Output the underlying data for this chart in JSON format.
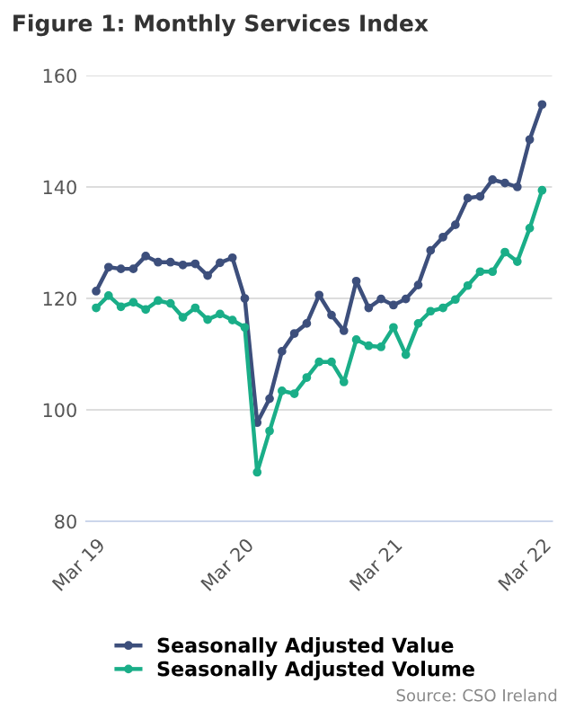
{
  "chart_data": {
    "type": "line",
    "title": "Figure 1: Monthly Services Index",
    "categories": [
      "Mar 19",
      null,
      null,
      null,
      null,
      null,
      null,
      null,
      null,
      null,
      null,
      null,
      "Mar 20",
      null,
      null,
      null,
      null,
      null,
      null,
      null,
      null,
      null,
      null,
      null,
      "Mar 21",
      null,
      null,
      null,
      null,
      null,
      null,
      null,
      null,
      null,
      null,
      null,
      "Mar 22"
    ],
    "series": [
      {
        "name": "Seasonally Adjusted Value",
        "color": "#3d4f7c",
        "values": [
          121.3,
          125.6,
          125.3,
          125.3,
          127.6,
          126.5,
          126.5,
          126,
          126.2,
          124.1,
          126.4,
          127.3,
          120,
          97.7,
          102,
          110.5,
          113.7,
          115.5,
          120.6,
          117,
          114.2,
          123.1,
          118.3,
          119.9,
          118.8,
          119.9,
          122.4,
          128.6,
          131,
          133.2,
          138,
          138.3,
          141.3,
          140.7,
          140,
          148.5,
          154.8
        ]
      },
      {
        "name": "Seasonally Adjusted Volume",
        "color": "#1aae88",
        "values": [
          118.3,
          120.5,
          118.5,
          119.3,
          118,
          119.6,
          119.1,
          116.6,
          118.3,
          116.2,
          117.2,
          116.1,
          114.8,
          88.8,
          96.2,
          103.4,
          102.9,
          105.8,
          108.6,
          108.6,
          105,
          112.6,
          111.5,
          111.3,
          114.8,
          109.9,
          115.5,
          117.7,
          118.3,
          119.8,
          122.3,
          124.8,
          124.8,
          128.3,
          126.6,
          132.6,
          139.4
        ]
      }
    ],
    "ylim": [
      80,
      160
    ],
    "yticks": [
      80,
      100,
      120,
      140,
      160
    ],
    "grid": "y",
    "legend": "bottom",
    "marker": "circle",
    "line_style": "solid",
    "annotations": [
      "Source: CSO Ireland"
    ]
  }
}
